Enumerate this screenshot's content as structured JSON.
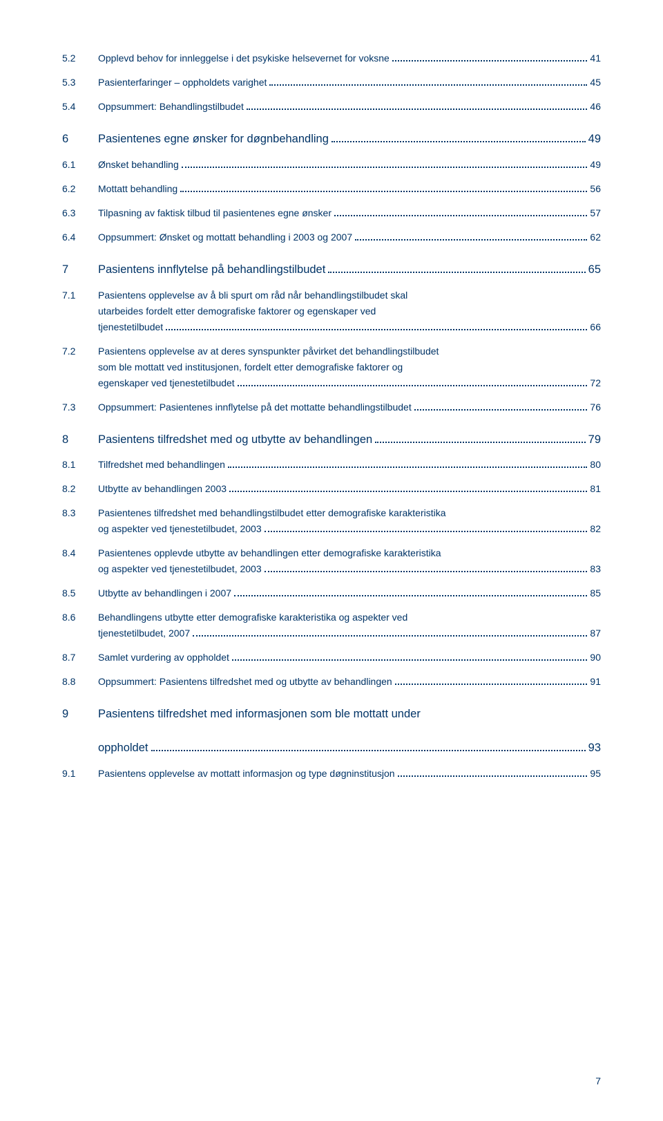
{
  "colors": {
    "text": "#003366",
    "background": "#ffffff"
  },
  "typography": {
    "font_family": "Verdana, Geneva, sans-serif",
    "section_fontsize": 16.5,
    "sub_fontsize": 14
  },
  "toc": [
    {
      "level": "sub",
      "num": "5.2",
      "lines": [
        "Opplevd behov for innleggelse i det psykiske helsevernet for voksne"
      ],
      "page": "41"
    },
    {
      "level": "sub",
      "num": "5.3",
      "lines": [
        "Pasienterfaringer – oppholdets varighet"
      ],
      "page": "45"
    },
    {
      "level": "sub",
      "num": "5.4",
      "lines": [
        "Oppsummert: Behandlingstilbudet"
      ],
      "page": "46"
    },
    {
      "level": "section",
      "num": "6",
      "lines": [
        "Pasientenes egne ønsker for døgnbehandling"
      ],
      "page": "49"
    },
    {
      "level": "sub",
      "num": "6.1",
      "lines": [
        "Ønsket behandling"
      ],
      "page": "49"
    },
    {
      "level": "sub",
      "num": "6.2",
      "lines": [
        "Mottatt behandling"
      ],
      "page": "56"
    },
    {
      "level": "sub",
      "num": "6.3",
      "lines": [
        "Tilpasning av faktisk tilbud til pasientenes egne ønsker"
      ],
      "page": "57"
    },
    {
      "level": "sub",
      "num": "6.4",
      "lines": [
        "Oppsummert: Ønsket og mottatt behandling i 2003 og 2007"
      ],
      "page": "62"
    },
    {
      "level": "section",
      "num": "7",
      "lines": [
        "Pasientens innflytelse på behandlingstilbudet"
      ],
      "page": "65"
    },
    {
      "level": "sub",
      "num": "7.1",
      "lines": [
        "Pasientens opplevelse av å bli spurt om råd når behandlingstilbudet skal",
        "utarbeides fordelt etter demografiske faktorer og egenskaper ved",
        "tjenestetilbudet"
      ],
      "page": "66"
    },
    {
      "level": "sub",
      "num": "7.2",
      "lines": [
        "Pasientens opplevelse av at deres synspunkter påvirket det behandlingstilbudet",
        "som ble mottatt ved institusjonen, fordelt etter demografiske faktorer og",
        "egenskaper ved tjenestetilbudet"
      ],
      "page": "72"
    },
    {
      "level": "sub",
      "num": "7.3",
      "lines": [
        "Oppsummert: Pasientenes innflytelse på det mottatte behandlingstilbudet"
      ],
      "page": "76"
    },
    {
      "level": "section",
      "num": "8",
      "lines": [
        "Pasientens tilfredshet med og utbytte av behandlingen"
      ],
      "page": "79"
    },
    {
      "level": "sub",
      "num": "8.1",
      "lines": [
        "Tilfredshet med behandlingen"
      ],
      "page": "80"
    },
    {
      "level": "sub",
      "num": "8.2",
      "lines": [
        "Utbytte av behandlingen 2003"
      ],
      "page": "81"
    },
    {
      "level": "sub",
      "num": "8.3",
      "lines": [
        "Pasientenes tilfredshet med behandlingstilbudet etter demografiske karakteristika",
        "og aspekter ved tjenestetilbudet, 2003"
      ],
      "page": "82"
    },
    {
      "level": "sub",
      "num": "8.4",
      "lines": [
        "Pasientenes opplevde utbytte av behandlingen etter demografiske karakteristika",
        "og aspekter ved tjenestetilbudet, 2003"
      ],
      "page": "83"
    },
    {
      "level": "sub",
      "num": "8.5",
      "lines": [
        "Utbytte av behandlingen i 2007"
      ],
      "page": "85"
    },
    {
      "level": "sub",
      "num": "8.6",
      "lines": [
        "Behandlingens utbytte etter demografiske karakteristika og aspekter ved",
        "tjenestetilbudet, 2007"
      ],
      "page": "87"
    },
    {
      "level": "sub",
      "num": "8.7",
      "lines": [
        "Samlet vurdering av oppholdet"
      ],
      "page": "90"
    },
    {
      "level": "sub",
      "num": "8.8",
      "lines": [
        "Oppsummert: Pasientens tilfredshet med og utbytte av behandlingen"
      ],
      "page": "91"
    },
    {
      "level": "section",
      "num": "9",
      "lines": [
        "Pasientens tilfredshet med informasjonen som ble mottatt under",
        "oppholdet"
      ],
      "page": "93"
    },
    {
      "level": "sub",
      "num": "9.1",
      "lines": [
        "Pasientens opplevelse av mottatt informasjon og type døgninstitusjon"
      ],
      "page": "95"
    }
  ],
  "footer_page": "7"
}
